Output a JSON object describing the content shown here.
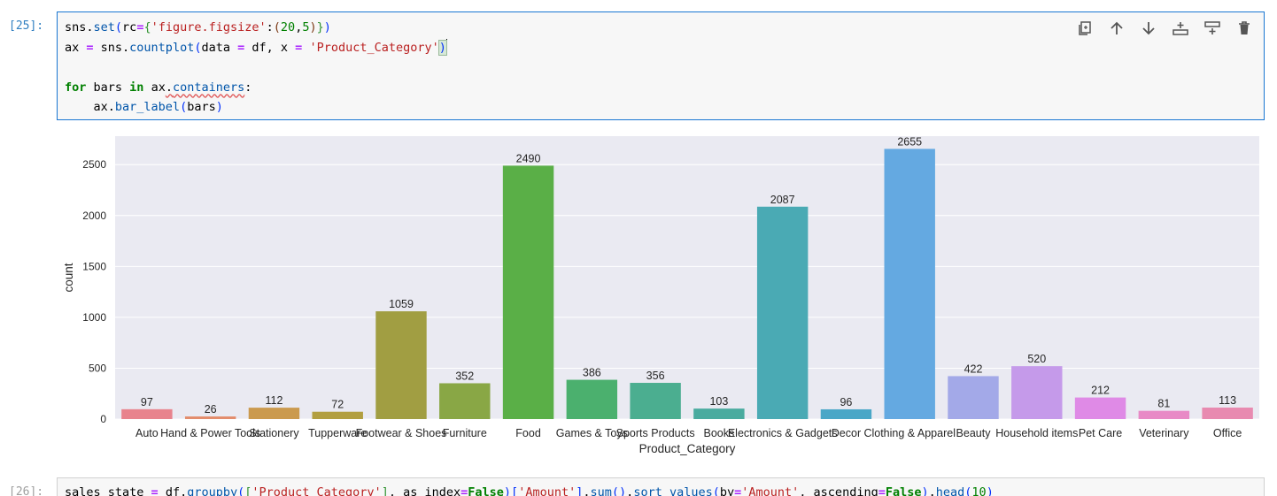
{
  "cell1": {
    "prompt": "[25]:",
    "lines": [
      "sns.set(rc={'figure.figsize':(20,5)})",
      "ax = sns.countplot(data = df, x = 'Product_Category')",
      "",
      "for bars in ax.containers:",
      "    ax.bar_label(bars)"
    ]
  },
  "toolbar": {
    "buttons": [
      {
        "name": "duplicate-cell-button",
        "icon": "copy-icon"
      },
      {
        "name": "move-up-button",
        "icon": "arrow-up-icon"
      },
      {
        "name": "move-down-button",
        "icon": "arrow-down-icon"
      },
      {
        "name": "insert-above-button",
        "icon": "insert-above-icon"
      },
      {
        "name": "insert-below-button",
        "icon": "insert-below-icon"
      },
      {
        "name": "delete-cell-button",
        "icon": "trash-icon"
      }
    ]
  },
  "chart_data": {
    "type": "bar",
    "categories": [
      "Auto",
      "Hand & Power Tools",
      "Stationery",
      "Tupperware",
      "Footwear & Shoes",
      "Furniture",
      "Food",
      "Games & Toys",
      "Sports Products",
      "Books",
      "Electronics & Gadgets",
      "Decor",
      "Clothing & Apparel",
      "Beauty",
      "Household items",
      "Pet Care",
      "Veterinary",
      "Office"
    ],
    "values": [
      97,
      26,
      112,
      72,
      1059,
      352,
      2490,
      386,
      356,
      103,
      2087,
      96,
      2655,
      422,
      520,
      212,
      81,
      113
    ],
    "colors": [
      "#e8838d",
      "#e38d6d",
      "#cb9a4e",
      "#b29f40",
      "#a19e42",
      "#89a745",
      "#5aaf47",
      "#4bb06e",
      "#4bae90",
      "#4aab9f",
      "#4aaab4",
      "#4aa7c7",
      "#64a9e1",
      "#a3a9e8",
      "#c59aea",
      "#df8ae6",
      "#e88ac6",
      "#e88ab0"
    ],
    "xlabel": "Product_Category",
    "ylabel": "count",
    "ylim": [
      0,
      2780
    ],
    "yticks": [
      0,
      500,
      1000,
      1500,
      2000,
      2500
    ],
    "grid": true,
    "background": "#eaeaf2"
  },
  "cell2": {
    "prompt": "[26]:",
    "line": "sales_state = df.groupby(['Product_Category'], as_index=False)['Amount'].sum().sort_values(by='Amount', ascending=False).head(10)"
  }
}
